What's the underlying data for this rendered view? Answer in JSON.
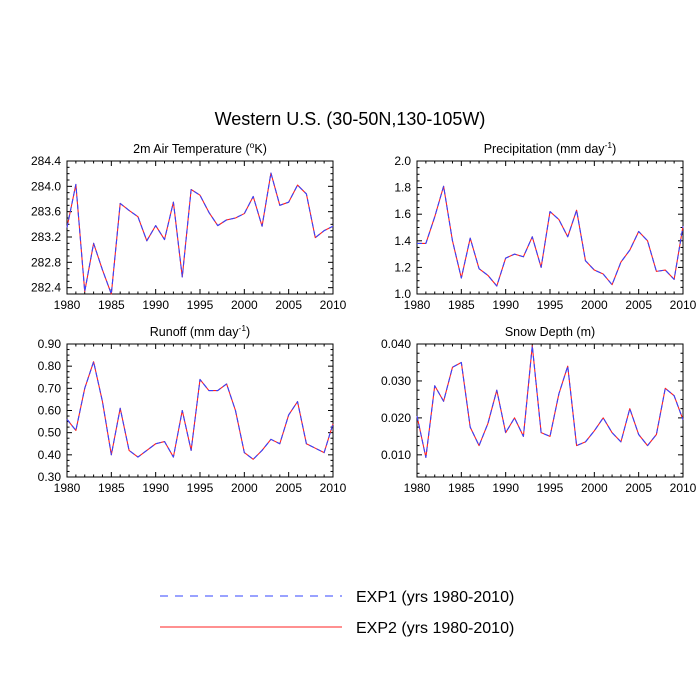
{
  "main_title": "Western U.S. (30-50N,130-105W)",
  "legend": [
    {
      "label": "EXP1 (yrs 1980-2010)",
      "color": "#3344ff",
      "style": "dashed"
    },
    {
      "label": "EXP2 (yrs 1980-2010)",
      "color": "#ff2020",
      "style": "solid"
    }
  ],
  "chart_data": [
    {
      "type": "line",
      "title_main": "2m Air Temperature (",
      "title_sup": "o",
      "title_tail": "K)",
      "x": [
        1980,
        1981,
        1982,
        1983,
        1984,
        1985,
        1986,
        1987,
        1988,
        1989,
        1990,
        1991,
        1992,
        1993,
        1994,
        1995,
        1996,
        1997,
        1998,
        1999,
        2000,
        2001,
        2002,
        2003,
        2004,
        2005,
        2006,
        2007,
        2008,
        2009,
        2010
      ],
      "xlim": [
        1980,
        2010
      ],
      "xticks": [
        1980,
        1985,
        1990,
        1995,
        2000,
        2005,
        2010
      ],
      "ylim": [
        282.3,
        284.4
      ],
      "yticks": [
        282.4,
        282.8,
        283.2,
        283.6,
        284.0,
        284.4
      ],
      "ytick_labels": [
        "282.4",
        "282.8",
        "283.2",
        "283.6",
        "284.0",
        "284.4"
      ],
      "series": [
        {
          "name": "EXP1",
          "values": [
            283.35,
            284.03,
            282.34,
            283.1,
            282.68,
            282.3,
            283.73,
            283.62,
            283.52,
            283.14,
            283.38,
            283.16,
            283.75,
            282.57,
            283.95,
            283.86,
            283.59,
            283.38,
            283.47,
            283.5,
            283.57,
            283.84,
            283.37,
            284.21,
            283.7,
            283.75,
            284.02,
            283.88,
            283.19,
            283.3,
            283.37
          ]
        },
        {
          "name": "EXP2",
          "values": [
            283.35,
            284.03,
            282.34,
            283.1,
            282.68,
            282.3,
            283.73,
            283.62,
            283.52,
            283.14,
            283.38,
            283.16,
            283.75,
            282.57,
            283.95,
            283.86,
            283.59,
            283.38,
            283.47,
            283.5,
            283.57,
            283.84,
            283.37,
            284.21,
            283.7,
            283.75,
            284.02,
            283.88,
            283.19,
            283.3,
            283.37
          ]
        }
      ]
    },
    {
      "type": "line",
      "title_main": "Precipitation (mm day",
      "title_sup": "-1",
      "title_tail": ")",
      "x": [
        1980,
        1981,
        1982,
        1983,
        1984,
        1985,
        1986,
        1987,
        1988,
        1989,
        1990,
        1991,
        1992,
        1993,
        1994,
        1995,
        1996,
        1997,
        1998,
        1999,
        2000,
        2001,
        2002,
        2003,
        2004,
        2005,
        2006,
        2007,
        2008,
        2009,
        2010
      ],
      "xlim": [
        1980,
        2010
      ],
      "xticks": [
        1980,
        1985,
        1990,
        1995,
        2000,
        2005,
        2010
      ],
      "ylim": [
        1.0,
        2.0
      ],
      "yticks": [
        1.0,
        1.2,
        1.4,
        1.6,
        1.8,
        2.0
      ],
      "ytick_labels": [
        "1.0",
        "1.2",
        "1.4",
        "1.6",
        "1.8",
        "2.0"
      ],
      "series": [
        {
          "name": "EXP1",
          "values": [
            1.38,
            1.38,
            1.58,
            1.81,
            1.4,
            1.12,
            1.42,
            1.19,
            1.14,
            1.06,
            1.27,
            1.3,
            1.28,
            1.43,
            1.2,
            1.62,
            1.56,
            1.43,
            1.63,
            1.25,
            1.18,
            1.15,
            1.07,
            1.24,
            1.33,
            1.47,
            1.4,
            1.17,
            1.18,
            1.11,
            1.51
          ]
        },
        {
          "name": "EXP2",
          "values": [
            1.38,
            1.38,
            1.58,
            1.81,
            1.4,
            1.12,
            1.42,
            1.19,
            1.14,
            1.06,
            1.27,
            1.3,
            1.28,
            1.43,
            1.2,
            1.62,
            1.56,
            1.43,
            1.63,
            1.25,
            1.18,
            1.15,
            1.07,
            1.24,
            1.33,
            1.47,
            1.4,
            1.17,
            1.18,
            1.11,
            1.51
          ]
        }
      ]
    },
    {
      "type": "line",
      "title_main": "Runoff (mm day",
      "title_sup": "-1",
      "title_tail": ")",
      "x": [
        1980,
        1981,
        1982,
        1983,
        1984,
        1985,
        1986,
        1987,
        1988,
        1989,
        1990,
        1991,
        1992,
        1993,
        1994,
        1995,
        1996,
        1997,
        1998,
        1999,
        2000,
        2001,
        2002,
        2003,
        2004,
        2005,
        2006,
        2007,
        2008,
        2009,
        2010
      ],
      "xlim": [
        1980,
        2010
      ],
      "xticks": [
        1980,
        1985,
        1990,
        1995,
        2000,
        2005,
        2010
      ],
      "ylim": [
        0.3,
        0.9
      ],
      "yticks": [
        0.3,
        0.4,
        0.5,
        0.6,
        0.7,
        0.8,
        0.9
      ],
      "ytick_labels": [
        "0.30",
        "0.40",
        "0.50",
        "0.60",
        "0.70",
        "0.80",
        "0.90"
      ],
      "series": [
        {
          "name": "EXP1",
          "values": [
            0.56,
            0.51,
            0.7,
            0.82,
            0.64,
            0.4,
            0.61,
            0.42,
            0.39,
            0.42,
            0.45,
            0.46,
            0.39,
            0.6,
            0.42,
            0.74,
            0.69,
            0.69,
            0.72,
            0.6,
            0.41,
            0.38,
            0.42,
            0.47,
            0.45,
            0.58,
            0.64,
            0.45,
            0.43,
            0.41,
            0.54
          ]
        },
        {
          "name": "EXP2",
          "values": [
            0.56,
            0.51,
            0.7,
            0.82,
            0.64,
            0.4,
            0.61,
            0.42,
            0.39,
            0.42,
            0.45,
            0.46,
            0.39,
            0.6,
            0.42,
            0.74,
            0.69,
            0.69,
            0.72,
            0.6,
            0.41,
            0.38,
            0.42,
            0.47,
            0.45,
            0.58,
            0.64,
            0.45,
            0.43,
            0.41,
            0.54
          ]
        }
      ]
    },
    {
      "type": "line",
      "title_main": "Snow Depth (m)",
      "title_sup": "",
      "title_tail": "",
      "x": [
        1980,
        1981,
        1982,
        1983,
        1984,
        1985,
        1986,
        1987,
        1988,
        1989,
        1990,
        1991,
        1992,
        1993,
        1994,
        1995,
        1996,
        1997,
        1998,
        1999,
        2000,
        2001,
        2002,
        2003,
        2004,
        2005,
        2006,
        2007,
        2008,
        2009,
        2010
      ],
      "xlim": [
        1980,
        2010
      ],
      "xticks": [
        1980,
        1985,
        1990,
        1995,
        2000,
        2005,
        2010
      ],
      "ylim": [
        0.004,
        0.04
      ],
      "yticks": [
        0.01,
        0.02,
        0.03,
        0.04
      ],
      "ytick_labels": [
        "0.010",
        "0.020",
        "0.030",
        "0.040"
      ],
      "series": [
        {
          "name": "EXP1",
          "values": [
            0.0205,
            0.0093,
            0.0287,
            0.0245,
            0.0337,
            0.035,
            0.0175,
            0.0125,
            0.0185,
            0.0275,
            0.016,
            0.02,
            0.015,
            0.0395,
            0.016,
            0.015,
            0.0265,
            0.034,
            0.0125,
            0.0135,
            0.0165,
            0.02,
            0.016,
            0.0135,
            0.0225,
            0.0155,
            0.0125,
            0.0155,
            0.028,
            0.026,
            0.0195
          ]
        },
        {
          "name": "EXP2",
          "values": [
            0.0205,
            0.0093,
            0.0287,
            0.0245,
            0.0337,
            0.035,
            0.0175,
            0.0125,
            0.0185,
            0.0275,
            0.016,
            0.02,
            0.015,
            0.0395,
            0.016,
            0.015,
            0.0265,
            0.034,
            0.0125,
            0.0135,
            0.0165,
            0.02,
            0.016,
            0.0135,
            0.0225,
            0.0155,
            0.0125,
            0.0155,
            0.028,
            0.026,
            0.0195
          ]
        }
      ]
    }
  ]
}
